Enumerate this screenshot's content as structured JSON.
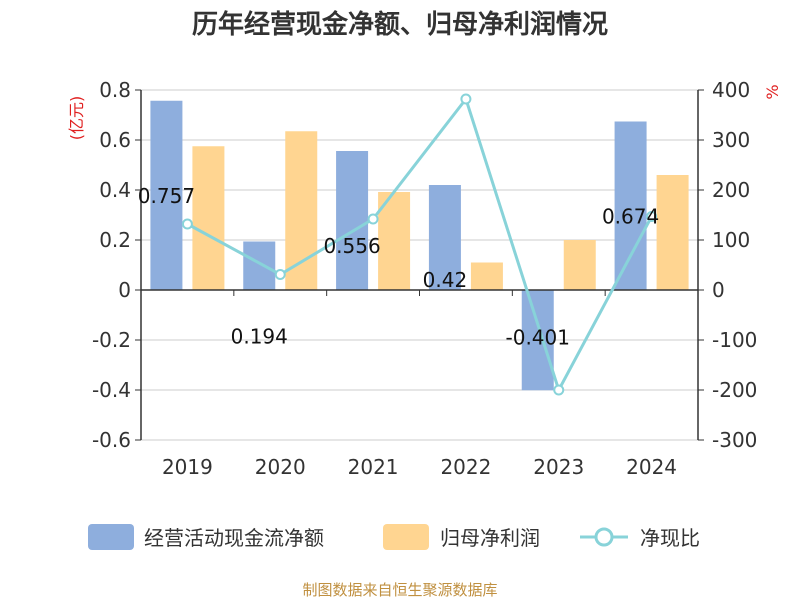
{
  "chart_data": {
    "type": "bar",
    "title": "历年经营现金净额、归母净利润情况",
    "categories": [
      "2019",
      "2020",
      "2021",
      "2022",
      "2023",
      "2024"
    ],
    "series": [
      {
        "name": "经营活动现金流净额",
        "type": "bar",
        "axis": "left",
        "color": "#8eaedd",
        "values": [
          0.757,
          0.194,
          0.556,
          0.42,
          -0.401,
          0.674
        ],
        "labels": [
          "0.757",
          "0.194",
          "0.556",
          "0.42",
          "-0.401",
          "0.674"
        ]
      },
      {
        "name": "归母净利润",
        "type": "bar",
        "axis": "left",
        "color": "#ffd591",
        "values": [
          0.575,
          0.635,
          0.392,
          0.11,
          0.2,
          0.46
        ]
      },
      {
        "name": "净现比",
        "type": "line",
        "axis": "right",
        "color": "#88d3d9",
        "values": [
          132,
          31,
          142,
          382,
          -200,
          147
        ]
      }
    ],
    "y_left": {
      "unit": "(亿元)",
      "min": -0.6,
      "max": 0.8,
      "ticks": [
        "-0.6",
        "-0.4",
        "-0.2",
        "0",
        "0.2",
        "0.4",
        "0.6",
        "0.8"
      ]
    },
    "y_right": {
      "unit": "%",
      "min": -300,
      "max": 400,
      "ticks": [
        "-300",
        "-200",
        "-100",
        "0",
        "100",
        "200",
        "300",
        "400"
      ]
    },
    "grid": true,
    "legend_position": "bottom"
  },
  "source_note": "制图数据来自恒生聚源数据库"
}
